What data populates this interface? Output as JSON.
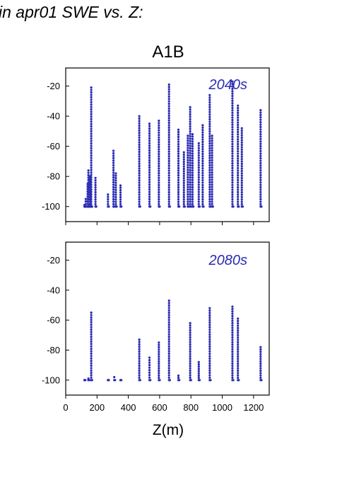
{
  "figure": {
    "title": "in apr01 SWE vs. Z:",
    "plot_title": "A1B",
    "xlabel": "Z(m)"
  },
  "colors": {
    "points": "#2a2ab4",
    "panel_label": "#2a2ab4",
    "axes": "#000000"
  },
  "chart_data": [
    {
      "type": "scatter",
      "panel_label": "2040s",
      "xlim": [
        0,
        1300
      ],
      "ylim": [
        -110,
        -8
      ],
      "xticks": [
        0,
        200,
        400,
        600,
        800,
        1000,
        1200
      ],
      "yticks": [
        -20,
        -40,
        -60,
        -80,
        -100
      ],
      "grid": false,
      "columns": [
        {
          "x": 120,
          "ymin": -100,
          "ymax": -99
        },
        {
          "x": 128,
          "ymin": -100,
          "ymax": -95
        },
        {
          "x": 140,
          "ymin": -100,
          "ymax": -85
        },
        {
          "x": 145,
          "ymin": -100,
          "ymax": -76
        },
        {
          "x": 155,
          "ymin": -100,
          "ymax": -80
        },
        {
          "x": 160,
          "ymin": -100,
          "ymax": -90
        },
        {
          "x": 163,
          "ymin": -100,
          "ymax": -21
        },
        {
          "x": 190,
          "ymin": -100,
          "ymax": -81
        },
        {
          "x": 270,
          "ymin": -100,
          "ymax": -92
        },
        {
          "x": 305,
          "ymin": -100,
          "ymax": -63
        },
        {
          "x": 320,
          "ymin": -100,
          "ymax": -78
        },
        {
          "x": 350,
          "ymin": -100,
          "ymax": -86
        },
        {
          "x": 470,
          "ymin": -100,
          "ymax": -40
        },
        {
          "x": 535,
          "ymin": -100,
          "ymax": -45
        },
        {
          "x": 595,
          "ymin": -100,
          "ymax": -43
        },
        {
          "x": 660,
          "ymin": -100,
          "ymax": -19
        },
        {
          "x": 720,
          "ymin": -100,
          "ymax": -49
        },
        {
          "x": 755,
          "ymin": -100,
          "ymax": -64
        },
        {
          "x": 780,
          "ymin": -100,
          "ymax": -53
        },
        {
          "x": 795,
          "ymin": -100,
          "ymax": -34
        },
        {
          "x": 810,
          "ymin": -100,
          "ymax": -52
        },
        {
          "x": 850,
          "ymin": -100,
          "ymax": -58
        },
        {
          "x": 875,
          "ymin": -100,
          "ymax": -46
        },
        {
          "x": 920,
          "ymin": -100,
          "ymax": -26
        },
        {
          "x": 935,
          "ymin": -100,
          "ymax": -53
        },
        {
          "x": 1065,
          "ymin": -100,
          "ymax": -17
        },
        {
          "x": 1100,
          "ymin": -100,
          "ymax": -33
        },
        {
          "x": 1125,
          "ymin": -100,
          "ymax": -48
        },
        {
          "x": 1245,
          "ymin": -100,
          "ymax": -36
        }
      ]
    },
    {
      "type": "scatter",
      "panel_label": "2080s",
      "xlim": [
        0,
        1300
      ],
      "ylim": [
        -110,
        -8
      ],
      "xticks": [
        0,
        200,
        400,
        600,
        800,
        1000,
        1200
      ],
      "yticks": [
        -20,
        -40,
        -60,
        -80,
        -100
      ],
      "grid": false,
      "columns": [
        {
          "x": 120,
          "ymin": -100,
          "ymax": -100
        },
        {
          "x": 145,
          "ymin": -100,
          "ymax": -99
        },
        {
          "x": 163,
          "ymin": -100,
          "ymax": -55
        },
        {
          "x": 270,
          "ymin": -100,
          "ymax": -100
        },
        {
          "x": 310,
          "ymin": -100,
          "ymax": -98
        },
        {
          "x": 350,
          "ymin": -100,
          "ymax": -100
        },
        {
          "x": 470,
          "ymin": -100,
          "ymax": -73
        },
        {
          "x": 535,
          "ymin": -100,
          "ymax": -85
        },
        {
          "x": 595,
          "ymin": -100,
          "ymax": -75
        },
        {
          "x": 660,
          "ymin": -100,
          "ymax": -47
        },
        {
          "x": 720,
          "ymin": -100,
          "ymax": -97
        },
        {
          "x": 795,
          "ymin": -100,
          "ymax": -62
        },
        {
          "x": 850,
          "ymin": -100,
          "ymax": -88
        },
        {
          "x": 920,
          "ymin": -100,
          "ymax": -52
        },
        {
          "x": 1065,
          "ymin": -100,
          "ymax": -51
        },
        {
          "x": 1100,
          "ymin": -100,
          "ymax": -59
        },
        {
          "x": 1245,
          "ymin": -100,
          "ymax": -78
        }
      ]
    }
  ]
}
